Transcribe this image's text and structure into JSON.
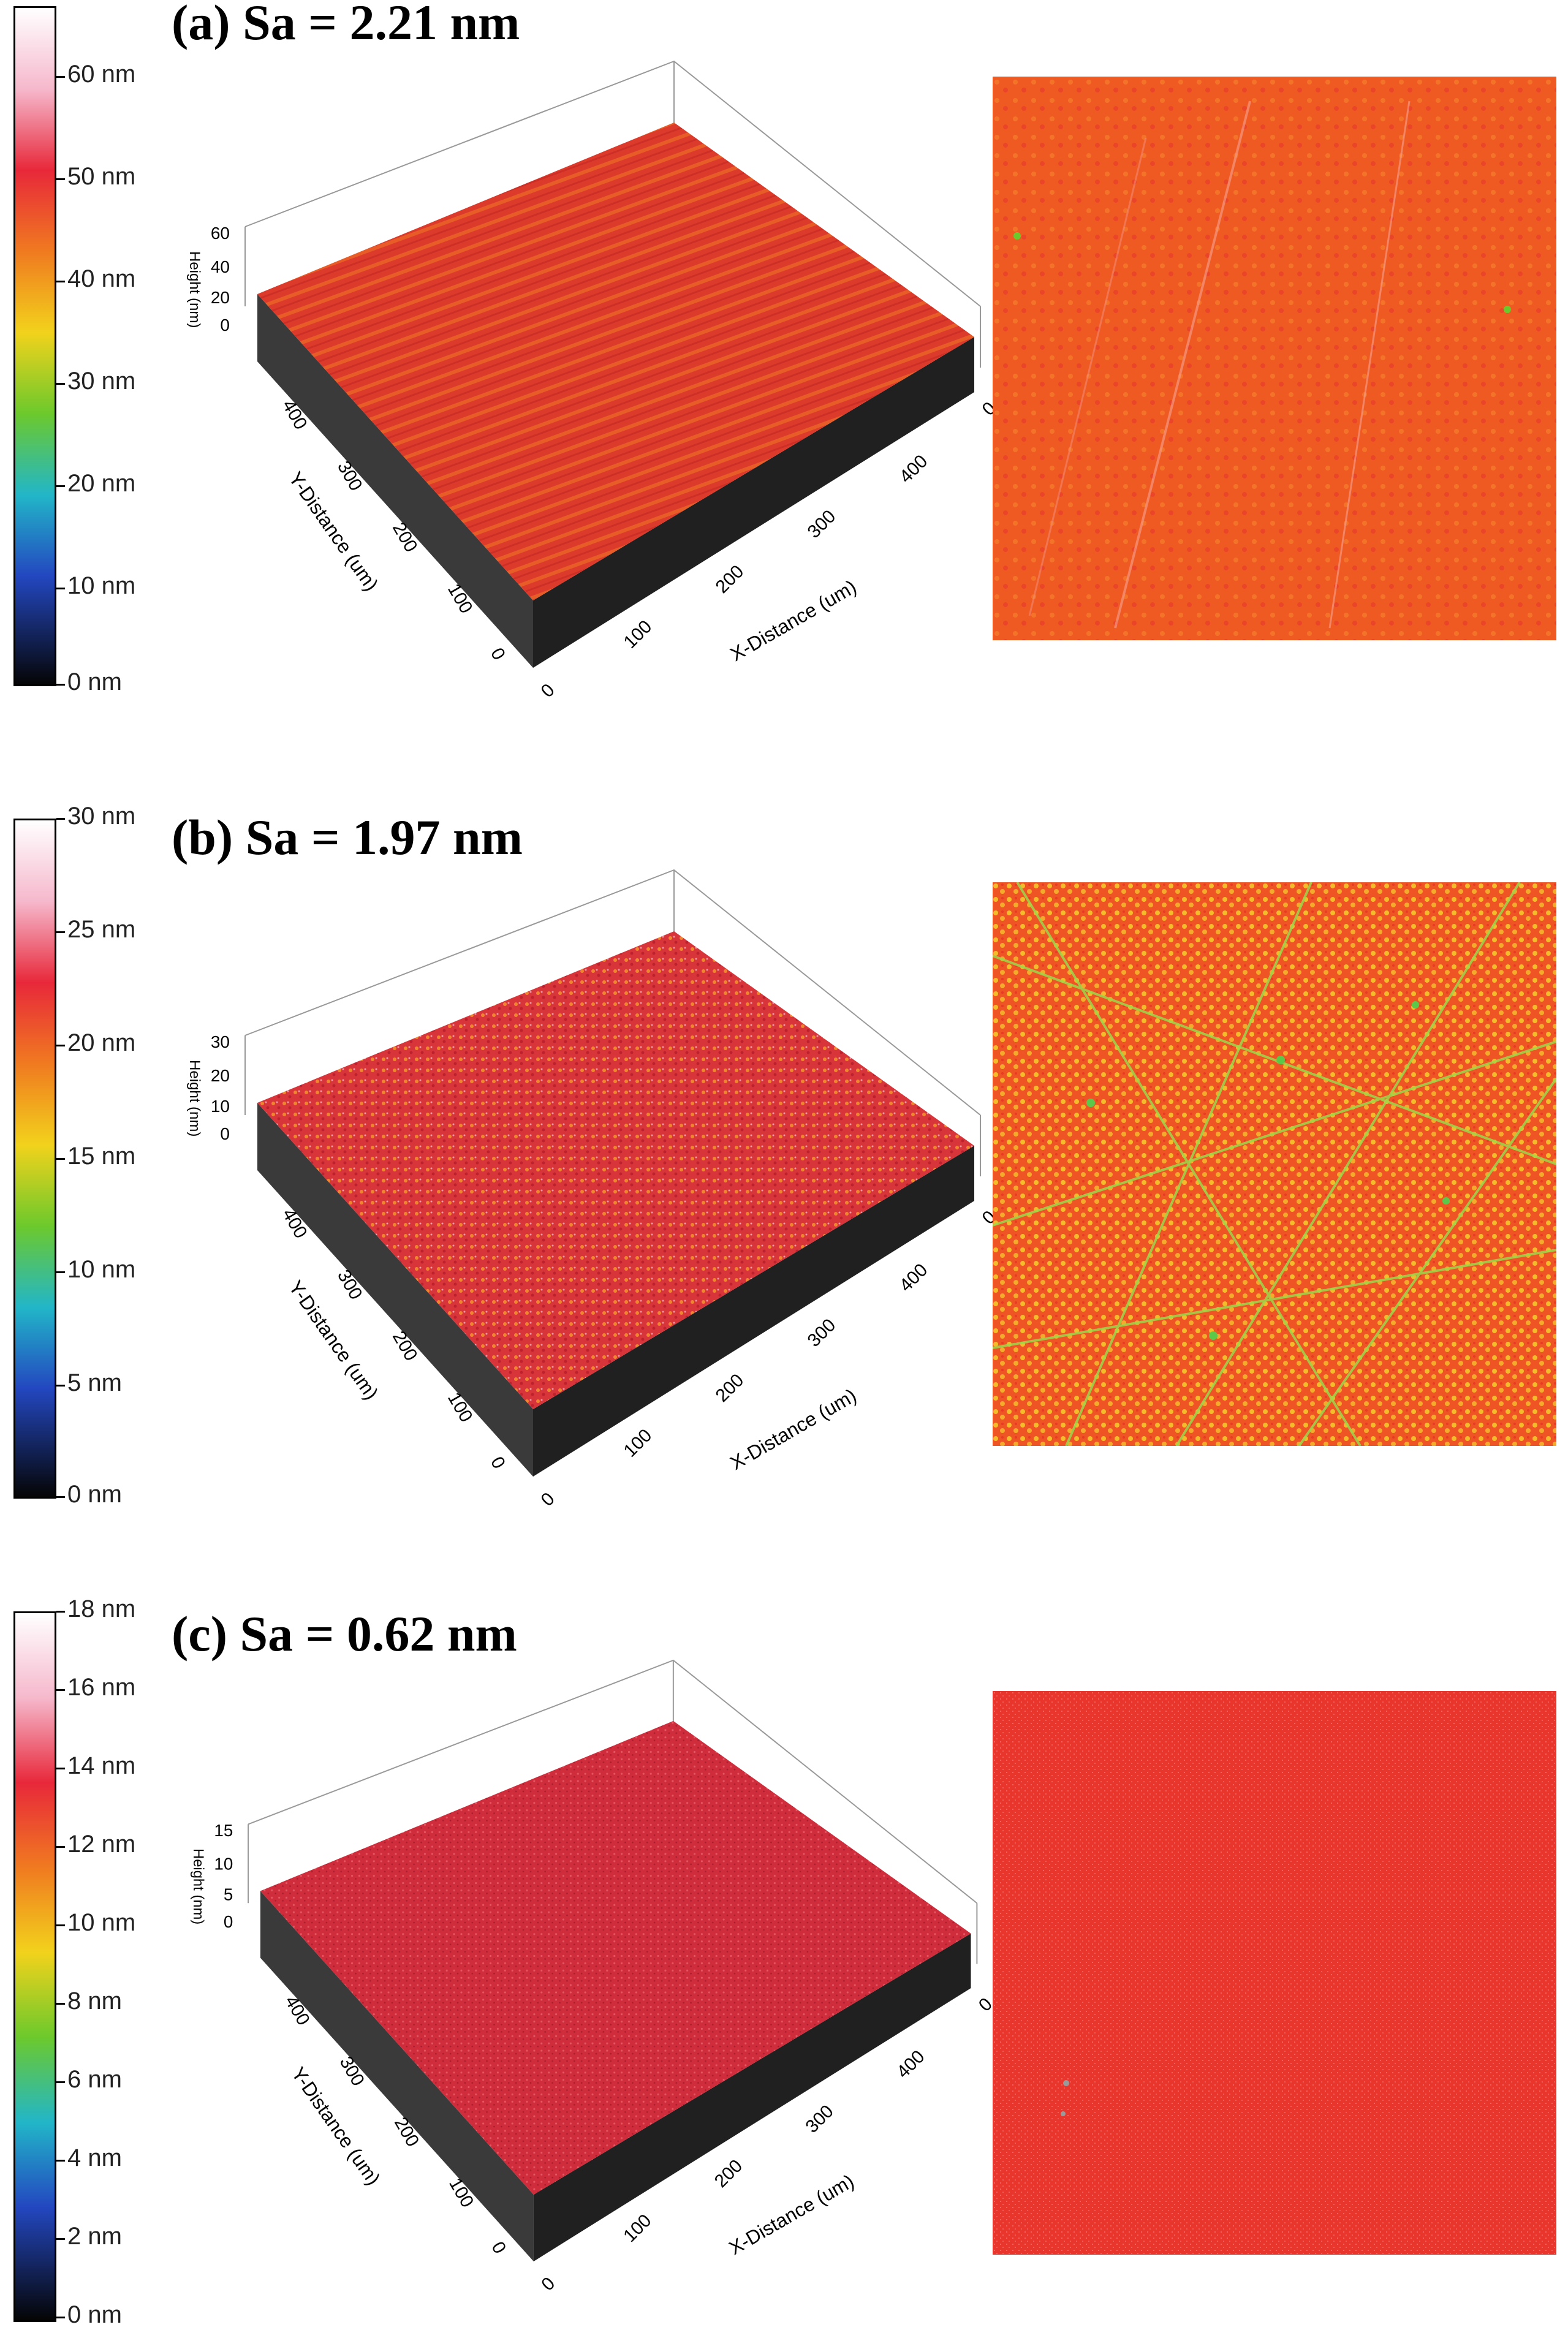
{
  "panels": [
    {
      "label": "(a) Sa = 2.21 nm",
      "colorbar_ticks": [
        "60 nm",
        "50 nm",
        "40 nm",
        "30 nm",
        "20 nm",
        "10 nm",
        "0 nm"
      ],
      "height_ticks": [
        "60",
        "40",
        "20",
        "0"
      ],
      "y_ticks": [
        "400",
        "300",
        "200",
        "100",
        "0"
      ],
      "x_ticks": [
        "0",
        "100",
        "200",
        "300",
        "400",
        "0"
      ],
      "height_label": "Height (nm)",
      "y_label": "Y-Distance (um)",
      "x_label": "X-Distance (um)",
      "surface_color": "#e0392a",
      "map_color": "#ef5a22"
    },
    {
      "label": "(b) Sa = 1.97 nm",
      "colorbar_ticks": [
        "30 nm",
        "25 nm",
        "20 nm",
        "15 nm",
        "10 nm",
        "5 nm",
        "0 nm"
      ],
      "height_ticks": [
        "30",
        "20",
        "10",
        "0"
      ],
      "y_ticks": [
        "400",
        "300",
        "200",
        "100",
        "0"
      ],
      "x_ticks": [
        "0",
        "100",
        "200",
        "300",
        "400",
        "0"
      ],
      "height_label": "Height (nm)",
      "y_label": "Y-Distance (um)",
      "x_label": "X-Distance (um)",
      "surface_color": "#d8353a",
      "map_color": "#f3882a"
    },
    {
      "label": "(c) Sa = 0.62 nm",
      "colorbar_ticks": [
        "18 nm",
        "16 nm",
        "14 nm",
        "12 nm",
        "10 nm",
        "8 nm",
        "6 nm",
        "4 nm",
        "2 nm",
        "0 nm"
      ],
      "height_ticks": [
        "15",
        "10",
        "5",
        "0"
      ],
      "y_ticks": [
        "400",
        "300",
        "200",
        "100",
        "0"
      ],
      "x_ticks": [
        "0",
        "100",
        "200",
        "300",
        "400",
        "0"
      ],
      "height_label": "Height (nm)",
      "y_label": "Y-Distance (um)",
      "x_label": "X-Distance (um)",
      "surface_color": "#d23040",
      "map_color": "#ea3a2c"
    }
  ]
}
